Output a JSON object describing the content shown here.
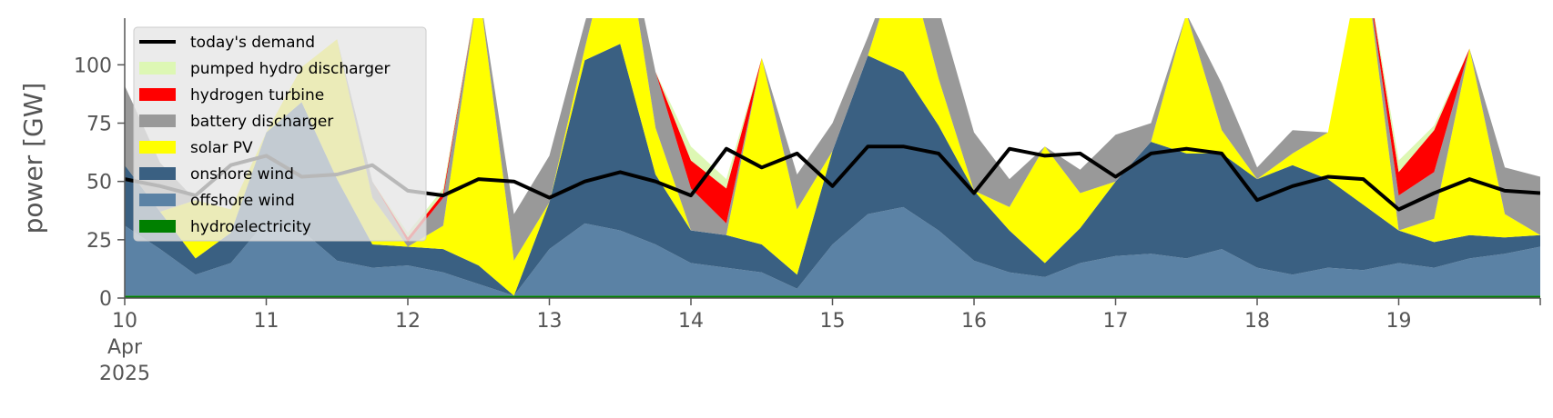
{
  "chart_data": {
    "type": "area",
    "title": "",
    "xlabel": "",
    "ylabel": "power [GW]",
    "x_start": "2025-04-10",
    "x_end": "2025-04-20",
    "ylim": [
      0,
      120
    ],
    "yticks": [
      0,
      25,
      50,
      75,
      100
    ],
    "xticks": [
      {
        "date": "2025-04-10",
        "lines": [
          "10",
          "Apr",
          "2025"
        ]
      },
      {
        "date": "2025-04-11",
        "lines": [
          "11"
        ]
      },
      {
        "date": "2025-04-12",
        "lines": [
          "12"
        ]
      },
      {
        "date": "2025-04-13",
        "lines": [
          "13"
        ]
      },
      {
        "date": "2025-04-14",
        "lines": [
          "14"
        ]
      },
      {
        "date": "2025-04-15",
        "lines": [
          "15"
        ]
      },
      {
        "date": "2025-04-16",
        "lines": [
          "16"
        ]
      },
      {
        "date": "2025-04-17",
        "lines": [
          "17"
        ]
      },
      {
        "date": "2025-04-18",
        "lines": [
          "18"
        ]
      },
      {
        "date": "2025-04-19",
        "lines": [
          "19"
        ]
      }
    ],
    "grid": false,
    "background": "#ffffff",
    "legend_position": "top-left",
    "x": [
      "2025-04-10 00:00",
      "2025-04-10 06:00",
      "2025-04-10 12:00",
      "2025-04-10 18:00",
      "2025-04-11 00:00",
      "2025-04-11 06:00",
      "2025-04-11 12:00",
      "2025-04-11 18:00",
      "2025-04-12 00:00",
      "2025-04-12 06:00",
      "2025-04-12 12:00",
      "2025-04-12 18:00",
      "2025-04-13 00:00",
      "2025-04-13 06:00",
      "2025-04-13 12:00",
      "2025-04-13 18:00",
      "2025-04-14 00:00",
      "2025-04-14 06:00",
      "2025-04-14 12:00",
      "2025-04-14 18:00",
      "2025-04-15 00:00",
      "2025-04-15 06:00",
      "2025-04-15 12:00",
      "2025-04-15 18:00",
      "2025-04-16 00:00",
      "2025-04-16 06:00",
      "2025-04-16 12:00",
      "2025-04-16 18:00",
      "2025-04-17 00:00",
      "2025-04-17 06:00",
      "2025-04-17 12:00",
      "2025-04-17 18:00",
      "2025-04-18 00:00",
      "2025-04-18 06:00",
      "2025-04-18 12:00",
      "2025-04-18 18:00",
      "2025-04-19 00:00",
      "2025-04-19 06:00",
      "2025-04-19 12:00",
      "2025-04-19 18:00",
      "2025-04-20 00:00"
    ],
    "series": [
      {
        "name": "hydroelectricity",
        "color": "#008000",
        "values": [
          1,
          1,
          1,
          1,
          1,
          1,
          1,
          1,
          1,
          1,
          1,
          1,
          1,
          1,
          1,
          1,
          1,
          1,
          1,
          1,
          1,
          1,
          1,
          1,
          1,
          1,
          1,
          1,
          1,
          1,
          1,
          1,
          1,
          1,
          1,
          1,
          1,
          1,
          1,
          1,
          1
        ]
      },
      {
        "name": "offshore wind",
        "color": "#5b82a5",
        "values": [
          30,
          20,
          9,
          14,
          32,
          28,
          15,
          12,
          13,
          10,
          5,
          0,
          20,
          31,
          28,
          22,
          14,
          12,
          10,
          3,
          22,
          35,
          38,
          28,
          15,
          10,
          8,
          14,
          17,
          18,
          16,
          20,
          12,
          9,
          12,
          11,
          14,
          12,
          16,
          18,
          21
        ]
      },
      {
        "name": "onshore wind",
        "color": "#3a6082",
        "values": [
          26,
          16,
          7,
          13,
          38,
          55,
          35,
          10,
          8,
          10,
          8,
          0,
          20,
          70,
          80,
          30,
          14,
          14,
          12,
          6,
          40,
          68,
          58,
          45,
          30,
          18,
          6,
          15,
          32,
          48,
          45,
          41,
          38,
          47,
          38,
          28,
          14,
          11,
          10,
          7,
          5
        ]
      },
      {
        "name": "solar PV",
        "color": "#ffff00",
        "values": [
          0,
          0,
          25,
          10,
          0,
          15,
          60,
          20,
          0,
          10,
          120,
          15,
          0,
          5,
          60,
          20,
          0,
          0,
          80,
          28,
          0,
          0,
          55,
          20,
          0,
          10,
          50,
          15,
          0,
          0,
          60,
          10,
          0,
          5,
          20,
          110,
          0,
          10,
          80,
          10,
          0
        ]
      },
      {
        "name": "battery discharger",
        "color": "#999999",
        "values": [
          34,
          21,
          0,
          0,
          0,
          0,
          0,
          7,
          2,
          12,
          0,
          20,
          20,
          11,
          0,
          24,
          18,
          5,
          0,
          15,
          12,
          8,
          0,
          30,
          25,
          12,
          0,
          10,
          20,
          8,
          0,
          20,
          5,
          10,
          0,
          0,
          15,
          20,
          0,
          20,
          25
        ]
      },
      {
        "name": "hydrogen turbine",
        "color": "#ff0000",
        "values": [
          0,
          0,
          0,
          0,
          0,
          0,
          0,
          0,
          2,
          2,
          0,
          0,
          0,
          0,
          0,
          0,
          12,
          15,
          0,
          0,
          0,
          0,
          0,
          0,
          0,
          0,
          0,
          0,
          0,
          0,
          0,
          0,
          0,
          0,
          0,
          0,
          10,
          18,
          0,
          0,
          0
        ]
      },
      {
        "name": "pumped hydro discharger",
        "color": "#ddf7b4",
        "values": [
          0,
          0,
          0,
          0,
          0,
          0,
          0,
          0,
          2,
          2,
          0,
          0,
          0,
          0,
          0,
          0,
          6,
          4,
          0,
          0,
          0,
          0,
          0,
          0,
          0,
          0,
          0,
          0,
          0,
          0,
          0,
          0,
          0,
          0,
          0,
          0,
          5,
          2,
          0,
          0,
          0
        ]
      }
    ],
    "demand": {
      "name": "today's demand",
      "color": "#000000",
      "values": [
        51,
        48,
        44,
        57,
        61,
        52,
        53,
        57,
        46,
        44,
        51,
        50,
        43,
        50,
        54,
        50,
        44,
        64,
        56,
        62,
        48,
        65,
        65,
        62,
        45,
        64,
        61,
        62,
        52,
        62,
        64,
        62,
        42,
        48,
        52,
        51,
        38,
        45,
        51,
        46,
        45
      ]
    }
  }
}
